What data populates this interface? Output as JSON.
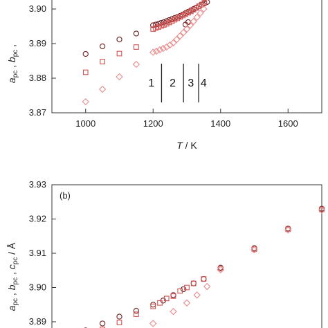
{
  "chart_data": [
    {
      "panel_label": "",
      "type": "scatter",
      "xlabel": "T / K",
      "ylabel": "apc , bpc ,",
      "xlim": [
        900,
        1700
      ],
      "ylim": [
        3.87,
        3.905
      ],
      "xticks": [
        "1000",
        "1200",
        "1400",
        "1600"
      ],
      "yticks": [
        "3.87",
        "3.88",
        "3.89",
        "3.90"
      ],
      "series": [
        {
          "marker": "circle",
          "color": "#6b1d1d",
          "x": [
            1000,
            1050,
            1100,
            1150,
            1200,
            1208,
            1216,
            1224,
            1232,
            1240,
            1248,
            1256,
            1264,
            1272,
            1280,
            1288,
            1296,
            1304,
            1312,
            1320,
            1328,
            1336,
            1344,
            1352,
            1360,
            1296,
            1304
          ],
          "y": [
            3.887,
            3.8892,
            3.8912,
            3.8929,
            3.8953,
            3.8955,
            3.8957,
            3.896,
            3.8962,
            3.8965,
            3.8968,
            3.8971,
            3.8974,
            3.8977,
            3.898,
            3.8984,
            3.8988,
            3.8992,
            3.8996,
            3.9,
            3.9004,
            3.9008,
            3.9012,
            3.9016,
            3.902,
            3.8955,
            3.8962
          ]
        },
        {
          "marker": "square",
          "color": "#d05050",
          "x": [
            1000,
            1050,
            1100,
            1150,
            1200,
            1208,
            1216,
            1224,
            1232,
            1240,
            1248,
            1256,
            1264,
            1272,
            1280,
            1288,
            1296,
            1304,
            1312,
            1320,
            1328,
            1336,
            1344,
            1352
          ],
          "y": [
            3.8817,
            3.8848,
            3.8871,
            3.889,
            3.8942,
            3.8945,
            3.8948,
            3.8951,
            3.8954,
            3.8957,
            3.8961,
            3.8965,
            3.8969,
            3.8973,
            3.8977,
            3.8981,
            3.8985,
            3.8989,
            3.8993,
            3.8998,
            3.9003,
            3.9008,
            3.9013,
            3.9018
          ]
        },
        {
          "marker": "diamond",
          "color": "#e88a8a",
          "x": [
            1000,
            1050,
            1100,
            1150,
            1200,
            1210,
            1220,
            1230,
            1240,
            1250,
            1260,
            1270,
            1280,
            1290,
            1300,
            1310,
            1320,
            1330,
            1340,
            1350
          ],
          "y": [
            3.8732,
            3.8768,
            3.8804,
            3.884,
            3.8875,
            3.8878,
            3.8882,
            3.8886,
            3.889,
            3.8896,
            3.8902,
            3.8912,
            3.8922,
            3.8932,
            3.8942,
            3.8953,
            3.8964,
            3.8976,
            3.8988,
            3.9
          ]
        }
      ],
      "regions": [
        "1",
        "2",
        "3",
        "4"
      ],
      "boundaries": [
        1225,
        1290,
        1335
      ]
    },
    {
      "panel_label": "(b)",
      "type": "scatter",
      "xlabel": "",
      "ylabel": "apc , bpc , cpc / Å",
      "xlim": [
        900,
        1700
      ],
      "ylim": [
        3.885,
        3.93
      ],
      "yticks": [
        "3.89",
        "3.90",
        "3.91",
        "3.92",
        "3.93"
      ],
      "series": [
        {
          "marker": "circle",
          "color": "#6b1d1d",
          "x": [
            1000,
            1050,
            1100,
            1150,
            1200,
            1230,
            1260,
            1290,
            1320,
            1350,
            1400,
            1500,
            1600,
            1700
          ],
          "y": [
            3.8875,
            3.8895,
            3.8915,
            3.8932,
            3.895,
            3.8962,
            3.8978,
            3.8995,
            3.9012,
            3.9025,
            3.9058,
            3.9115,
            3.9172,
            3.923
          ]
        },
        {
          "marker": "square",
          "color": "#d05050",
          "x": [
            1000,
            1050,
            1100,
            1150,
            1200,
            1220,
            1240,
            1260,
            1280,
            1300,
            1320,
            1350,
            1400,
            1500,
            1600,
            1700
          ],
          "y": [
            3.8855,
            3.8878,
            3.8898,
            3.8922,
            3.8945,
            3.8955,
            3.8968,
            3.8975,
            3.899,
            3.9,
            3.9012,
            3.9025,
            3.9055,
            3.9112,
            3.917,
            3.9228
          ]
        },
        {
          "marker": "diamond",
          "color": "#e88a8a",
          "x": [
            1150,
            1200,
            1260,
            1300,
            1330,
            1360,
            1400,
            1500,
            1600,
            1700
          ],
          "y": [
            3.8845,
            3.8895,
            3.893,
            3.8955,
            3.8978,
            3.9003,
            3.9052,
            3.911,
            3.9168,
            3.9226
          ]
        }
      ]
    }
  ]
}
